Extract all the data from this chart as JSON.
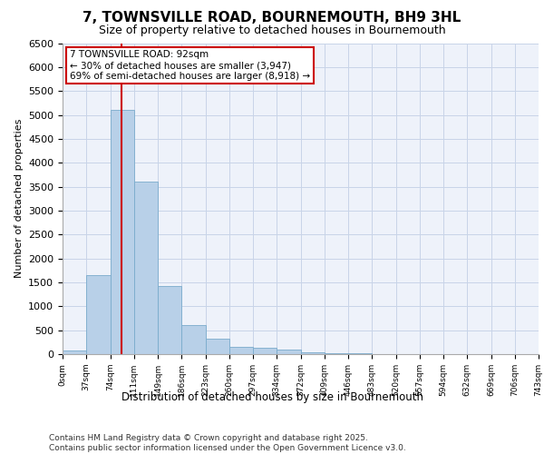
{
  "title_line1": "7, TOWNSVILLE ROAD, BOURNEMOUTH, BH9 3HL",
  "title_line2": "Size of property relative to detached houses in Bournemouth",
  "xlabel": "Distribution of detached houses by size in Bournemouth",
  "ylabel": "Number of detached properties",
  "footer_line1": "Contains HM Land Registry data © Crown copyright and database right 2025.",
  "footer_line2": "Contains public sector information licensed under the Open Government Licence v3.0.",
  "bin_labels": [
    "0sqm",
    "37sqm",
    "74sqm",
    "111sqm",
    "149sqm",
    "186sqm",
    "223sqm",
    "260sqm",
    "297sqm",
    "334sqm",
    "372sqm",
    "409sqm",
    "446sqm",
    "483sqm",
    "520sqm",
    "557sqm",
    "594sqm",
    "632sqm",
    "669sqm",
    "706sqm",
    "743sqm"
  ],
  "bar_values": [
    80,
    1650,
    5100,
    3600,
    1420,
    600,
    320,
    160,
    130,
    90,
    40,
    20,
    10,
    5,
    3,
    2,
    1,
    1,
    0,
    0
  ],
  "bar_color": "#b8d0e8",
  "bar_edge_color": "#7aabcc",
  "red_line_x": 2.49,
  "property_name": "7 TOWNSVILLE ROAD: 92sqm",
  "annotation_line1": "← 30% of detached houses are smaller (3,947)",
  "annotation_line2": "69% of semi-detached houses are larger (8,918) →",
  "annotation_box_color": "#ffffff",
  "annotation_box_edge": "#cc0000",
  "ylim": [
    0,
    6500
  ],
  "yticks": [
    0,
    500,
    1000,
    1500,
    2000,
    2500,
    3000,
    3500,
    4000,
    4500,
    5000,
    5500,
    6000,
    6500
  ],
  "background_color": "#eef2fa",
  "grid_color": "#c8d4e8",
  "title1_fontsize": 11,
  "title2_fontsize": 9,
  "ylabel_fontsize": 8,
  "xlabel_fontsize": 8.5,
  "ytick_fontsize": 8,
  "xtick_fontsize": 6.5,
  "annot_fontsize": 7.5,
  "footer_fontsize": 6.5
}
